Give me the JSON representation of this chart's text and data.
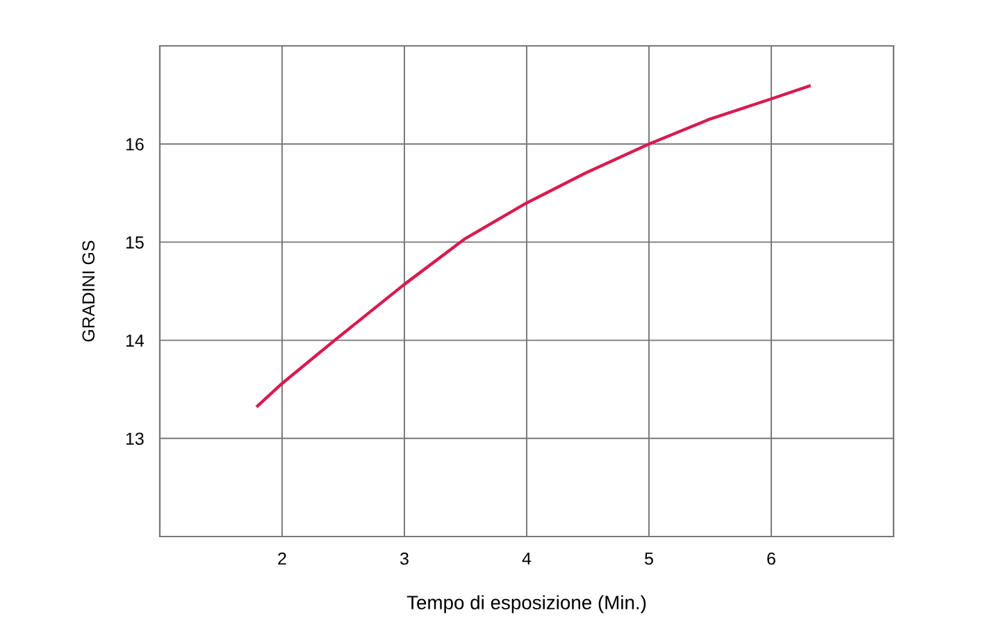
{
  "chart_data": {
    "type": "line",
    "xlabel": "Tempo di esposizione (Min.)",
    "ylabel": "GRADINI GS",
    "x": [
      1.8,
      2,
      2.43,
      3,
      3.49,
      4,
      4.49,
      5,
      5.49,
      6,
      6.31
    ],
    "series": [
      {
        "color": "#d81b4f",
        "values": [
          13.33,
          13.56,
          14.0,
          14.57,
          15.03,
          15.4,
          15.71,
          16.0,
          16.25,
          16.46,
          16.59
        ]
      }
    ],
    "xlim": [
      1,
      7
    ],
    "xticks": [
      {
        "value": 1,
        "label": null
      },
      2,
      3,
      4,
      5,
      6,
      {
        "value": 7,
        "label": null
      }
    ],
    "ylim": [
      12,
      17
    ],
    "yticks": [
      {
        "value": 12,
        "label": null
      },
      13,
      14,
      15,
      16,
      {
        "value": 17,
        "label": null
      }
    ],
    "grid": true,
    "marker": "none",
    "line_style": "solid"
  }
}
